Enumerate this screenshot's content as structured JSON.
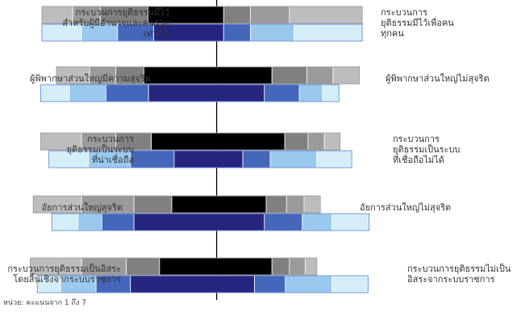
{
  "chart_data": {
    "type": "bar",
    "title": "",
    "xlabel": "",
    "ylabel": "",
    "note": "หน่วย: คะแนนจาก 1 ถึง 7",
    "scale_min": 1,
    "scale_max": 7,
    "palette": {
      "grey": [
        "#bdbdbd",
        "#9a9a9a",
        "#808080",
        "#000000"
      ],
      "blue": [
        "#d4eef8",
        "#99c9ee",
        "#4466bb",
        "#262680"
      ]
    },
    "rows": [
      {
        "left_label": [
          "กระบวนการยุติธรรมมีไว้",
          "สำหรับผู้มีอำนาจและคนรวย",
          "เท่านั้น"
        ],
        "right_label": [
          "กระบวนการ",
          "ยุติธรรมมีไว้เพื่อคน",
          "ทุกคน"
        ],
        "grey_edges": [
          1.0,
          1.53,
          2.0,
          2.82,
          4.12,
          4.58,
          5.25,
          6.5
        ],
        "blue_edges": [
          1.0,
          1.68,
          2.3,
          2.92,
          4.12,
          4.58,
          5.33,
          6.5
        ]
      },
      {
        "left_label": [
          "ผู้พิพากษาส่วนใหญ่มีความสุจริต"
        ],
        "right_label": [
          "ผู้พิพากษาส่วนใหญ่ไม่สุจริต"
        ],
        "grey_edges": [
          1.25,
          1.82,
          2.27,
          2.75,
          4.95,
          5.55,
          6.0,
          6.45
        ],
        "blue_edges": [
          0.98,
          1.47,
          2.1,
          2.83,
          4.82,
          5.42,
          5.82,
          6.1
        ]
      },
      {
        "left_label": [
          "กระบวนการ",
          "ยุติธรรมเป็นระบบ",
          "ที่น่าเชื่อถือ"
        ],
        "right_label": [
          "กระบวนการ",
          "ยุติธรรมเป็นระบบ",
          "ที่เชื่อถือไม่ได้"
        ],
        "grey_edges": [
          0.98,
          1.68,
          2.27,
          2.88,
          5.17,
          5.57,
          5.85,
          6.12
        ],
        "blue_edges": [
          1.12,
          1.8,
          2.52,
          3.27,
          4.45,
          4.92,
          5.72,
          6.32
        ]
      },
      {
        "left_label": [
          "อัยการส่วนใหญ่สุจริต"
        ],
        "right_label": [
          "อัยการส่วนใหญ่ไม่สุจริต"
        ],
        "grey_edges": [
          0.85,
          1.68,
          2.58,
          3.23,
          4.85,
          5.2,
          5.5,
          5.78
        ],
        "blue_edges": [
          1.17,
          1.62,
          2.03,
          2.58,
          4.82,
          5.47,
          5.98,
          6.62
        ]
      },
      {
        "left_label": [
          "กระบวนการยุติธรรมเป็นอิสระ",
          "โดยสิ้นเชิงจากระบบราชการ"
        ],
        "right_label": [
          "กระบวนการยุติธรรมไม่เป็น",
          "อิสระจากระบบราชการ"
        ],
        "grey_edges": [
          0.8,
          1.68,
          2.45,
          3.02,
          4.95,
          5.25,
          5.52,
          5.72
        ],
        "blue_edges": [
          0.92,
          1.32,
          1.93,
          2.52,
          4.65,
          5.18,
          5.98,
          6.6
        ]
      }
    ]
  }
}
